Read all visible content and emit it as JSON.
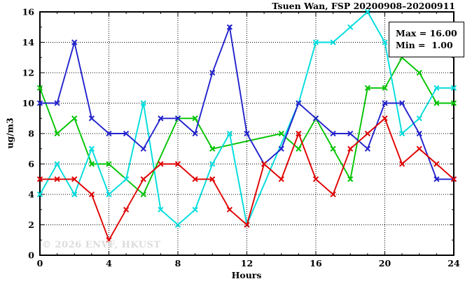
{
  "chart_data": {
    "type": "line",
    "title": "Tsuen Wan, FSP 20200908–20200911",
    "xlabel": "Hours",
    "ylabel": "ug/m3",
    "xlim": [
      0,
      24
    ],
    "ylim": [
      0,
      16
    ],
    "xticks": [
      0,
      4,
      8,
      12,
      16,
      20,
      24
    ],
    "yticks": [
      0,
      2,
      4,
      6,
      8,
      10,
      12,
      14,
      16
    ],
    "grid": true,
    "marker": "x-cross",
    "x": [
      0,
      1,
      2,
      3,
      4,
      5,
      6,
      7,
      8,
      9,
      10,
      11,
      12,
      13,
      14,
      15,
      16,
      17,
      18,
      19,
      20,
      21,
      22,
      23,
      24
    ],
    "series": [
      {
        "name": "green-series",
        "color": "#00c400",
        "values": [
          11,
          8,
          9,
          6,
          6,
          5,
          4,
          null,
          9,
          9,
          7,
          null,
          null,
          null,
          8,
          7,
          9,
          7,
          5,
          11,
          11,
          13,
          12,
          10,
          10
        ]
      },
      {
        "name": "cyan-series",
        "color": "#00dcdc",
        "values": [
          4,
          6,
          4,
          7,
          4,
          5,
          10,
          3,
          2,
          3,
          6,
          8,
          2,
          null,
          null,
          10,
          14,
          14,
          15,
          16,
          14,
          8,
          9,
          11,
          11
        ]
      },
      {
        "name": "blue-series",
        "color": "#2222cd",
        "values": [
          10,
          10,
          14,
          9,
          8,
          8,
          7,
          9,
          9,
          8,
          12,
          15,
          8,
          6,
          7,
          10,
          9,
          8,
          8,
          7,
          10,
          10,
          8,
          5,
          5
        ]
      },
      {
        "name": "red-series",
        "color": "#e00000",
        "values": [
          5,
          5,
          5,
          4,
          1,
          3,
          5,
          6,
          6,
          5,
          5,
          3,
          2,
          6,
          5,
          8,
          5,
          4,
          7,
          8,
          9,
          6,
          7,
          6,
          5
        ]
      }
    ],
    "stats_box": {
      "max_label": "Max = 16.00",
      "min_label": "Min =  1.00"
    },
    "watermark": "© 2026 ENVF, HKUST",
    "axis_color": "#000000"
  }
}
